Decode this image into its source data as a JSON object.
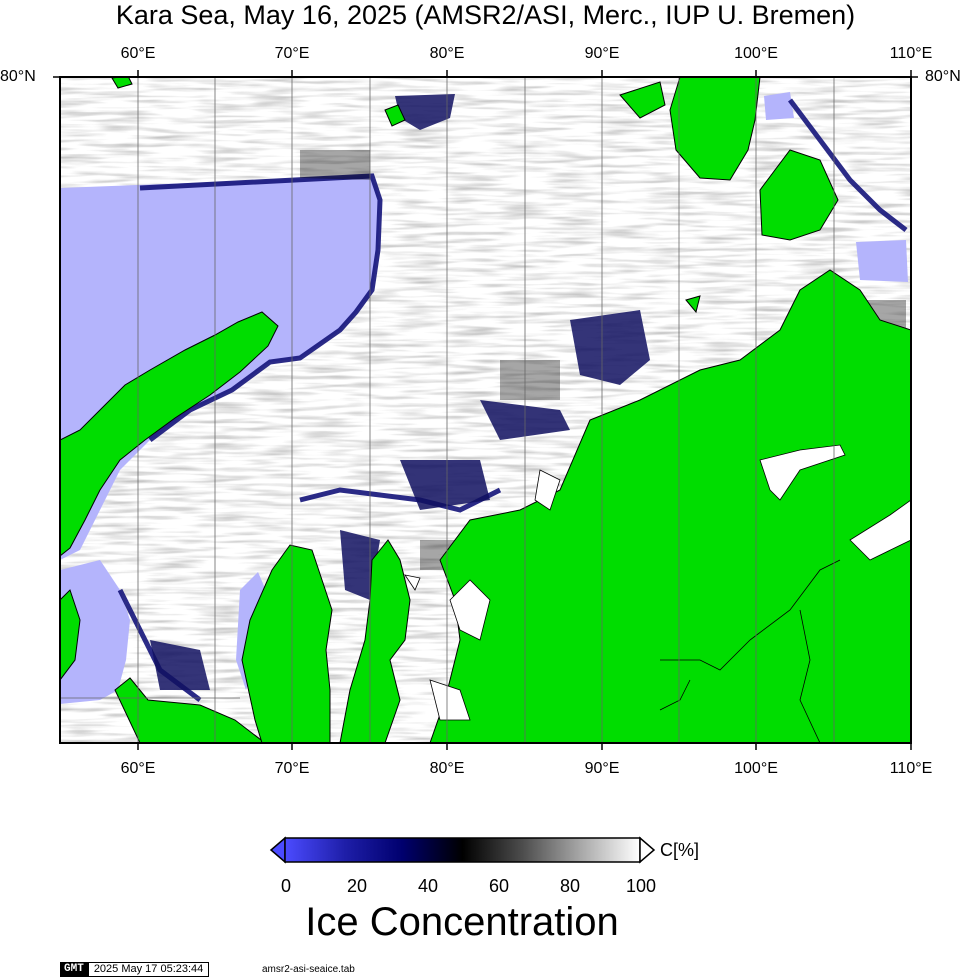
{
  "title": "Kara Sea, May 16, 2025 (AMSR2/ASI, Merc., IUP U. Bremen)",
  "map": {
    "lat_label_left": "80°N",
    "lat_label_right": "80°N",
    "lon_labels_top": [
      "60°E",
      "70°E",
      "80°E",
      "90°E",
      "100°E",
      "110°E"
    ],
    "lon_labels_bottom": [
      "60°E",
      "70°E",
      "80°E",
      "90°E",
      "100°E",
      "110°E"
    ],
    "colors": {
      "land": "#00dd00",
      "open_water": "#b4b4fc",
      "ice_full": "#ffffff",
      "ice_mid": "#000000",
      "ice_low": "#00007a",
      "frame": "#000000"
    }
  },
  "colorbar": {
    "unit_label": "C[%]",
    "ticks": [
      "0",
      "20",
      "40",
      "60",
      "80",
      "100"
    ],
    "stops": [
      "#4b4bff",
      "#1e1ea8",
      "#00006e",
      "#000000",
      "#4d4d4d",
      "#a6a6a6",
      "#ffffff"
    ],
    "title": "Ice Concentration"
  },
  "footer": {
    "logo": "GMT",
    "timestamp": "2025 May 17 05:23:44",
    "file": "amsr2-asi-seaice.tab"
  }
}
